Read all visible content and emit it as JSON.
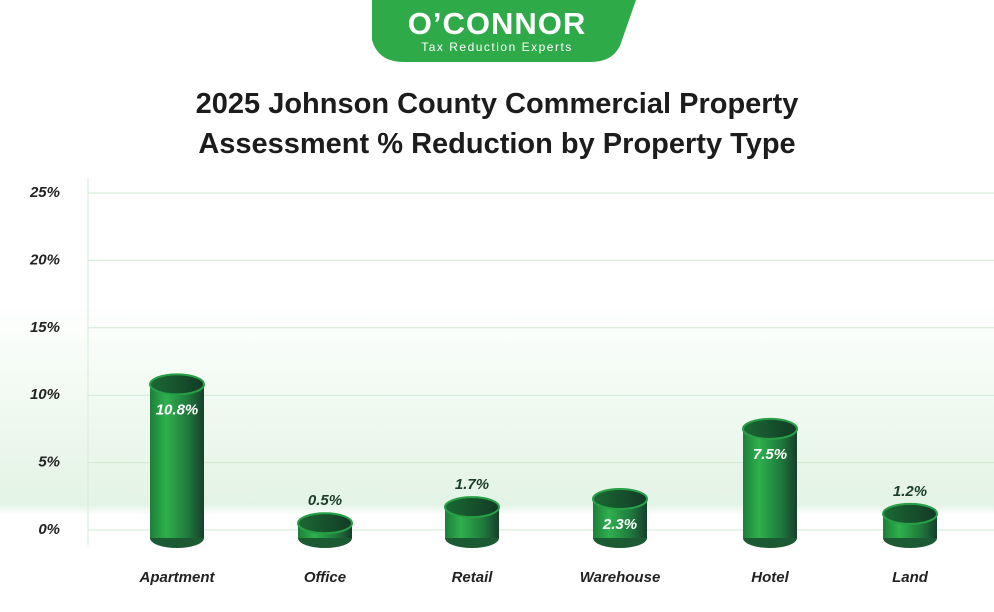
{
  "logo": {
    "name": "O’CONNOR",
    "tagline": "Tax Reduction Experts"
  },
  "chart_data": {
    "type": "bar",
    "title": "2025 Johnson County Commercial Property Assessment % Reduction by Property Type",
    "categories": [
      "Apartment",
      "Office",
      "Retail",
      "Warehouse",
      "Hotel",
      "Land"
    ],
    "values": [
      10.8,
      0.5,
      1.7,
      2.3,
      7.5,
      1.2
    ],
    "value_labels": [
      "10.8%",
      "0.5%",
      "1.7%",
      "2.3%",
      "7.5%",
      "1.2%"
    ],
    "color": "#27a046",
    "ylim": [
      0,
      26
    ],
    "yticks": [
      {
        "value": 0,
        "label": "0%"
      },
      {
        "value": 5,
        "label": "5%"
      },
      {
        "value": 10,
        "label": "10%"
      },
      {
        "value": 15,
        "label": "15%"
      },
      {
        "value": 20,
        "label": "20%"
      },
      {
        "value": 25,
        "label": "25%"
      }
    ],
    "grid": true
  }
}
